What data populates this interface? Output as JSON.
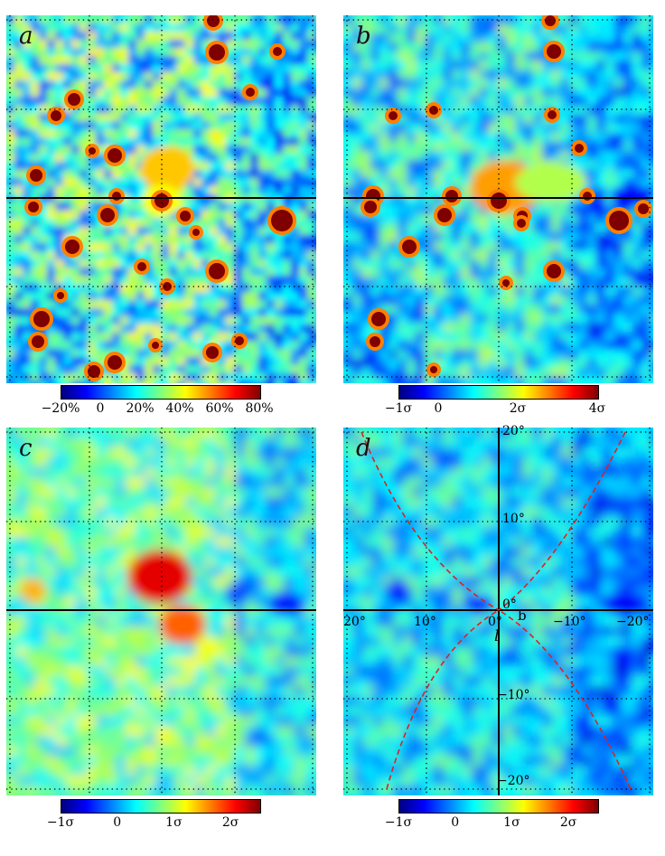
{
  "panels": {
    "a": {
      "label": "a",
      "colorbar_ticks": [
        "−20%",
        "0",
        "20%",
        "40%",
        "60%",
        "80%"
      ]
    },
    "b": {
      "label": "b",
      "colorbar_ticks": [
        "−1σ",
        "0",
        "2σ",
        "4σ"
      ]
    },
    "c": {
      "label": "c",
      "colorbar_ticks": [
        "−1σ",
        "0",
        "1σ",
        "2σ"
      ]
    },
    "d": {
      "label": "d",
      "colorbar_ticks": [
        "−1σ",
        "0",
        "1σ",
        "2σ"
      ]
    }
  },
  "axes_d": {
    "b_ticks": [
      "20°",
      "10°",
      "0°",
      "−10°",
      "−20°"
    ],
    "l_ticks": [
      "20°",
      "10°",
      "0°",
      "−10°",
      "−20°"
    ],
    "b_axis_label": "b",
    "l_axis_label": "l"
  },
  "colormap": [
    "#00007f",
    "#0000ff",
    "#007fff",
    "#00ffff",
    "#7fff7f",
    "#ffff00",
    "#ff7f00",
    "#ff0000",
    "#7f0000"
  ]
}
